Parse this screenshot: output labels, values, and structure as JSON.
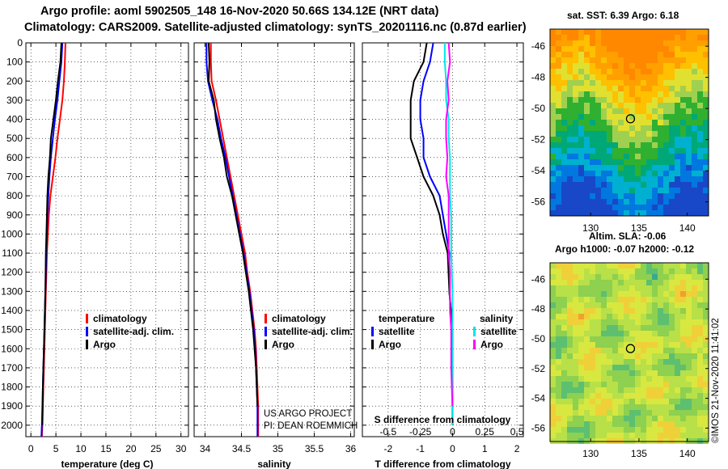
{
  "header": {
    "title_line1": "Argo profile: aoml 5902505_148 16-Nov-2020 50.66S 134.12E (NRT data)",
    "title_line2": "Climatology: CARS2009. Satellite-adjusted climatology: synTS_20201116.nc (0.87d earlier)"
  },
  "credit": {
    "line1": "US ARGO PROJECT",
    "line2": "PI: DEAN ROEMMICH"
  },
  "stamp": "©IMOS 21-Nov-2020 11:41:02",
  "colors": {
    "climatology": "#ff0000",
    "satellite": "#0000ff",
    "argo": "#000000",
    "s_satellite": "#00e5ee",
    "s_argo": "#ff00ff"
  },
  "legend_left": {
    "climatology": "climatology",
    "satellite": "satellite-adj. clim.",
    "argo": "Argo"
  },
  "legend_diff": {
    "temp_head": "temperature",
    "sal_head": "salinity",
    "satellite": "satellite",
    "argo": "Argo",
    "s_satellite": "satellite",
    "s_argo": "Argo"
  },
  "sst_map": {
    "title": "sat. SST: 6.39 Argo: 6.18",
    "xticks": [
      "130",
      "135",
      "140"
    ],
    "yticks": [
      "-46",
      "-48",
      "-50",
      "-52",
      "-54",
      "-56"
    ]
  },
  "sla_map": {
    "title_line1": "Altim. SLA: -0.06",
    "title_line2": "Argo h1000: -0.07 h2000: -0.12",
    "xticks": [
      "130",
      "135",
      "140"
    ],
    "yticks": [
      "-46",
      "-48",
      "-50",
      "-52",
      "-54",
      "-56"
    ]
  },
  "chart_data": [
    {
      "type": "line",
      "id": "temperature",
      "xlabel": "temperature (deg C)",
      "ylabel": "",
      "xlim": [
        -1,
        31.5
      ],
      "ylim": [
        2060,
        0
      ],
      "xticks": [
        "0",
        "5",
        "10",
        "15",
        "20",
        "25",
        "30"
      ],
      "yticks": [
        "0",
        "100",
        "200",
        "300",
        "400",
        "500",
        "600",
        "700",
        "800",
        "900",
        "1000",
        "1100",
        "1200",
        "1300",
        "1400",
        "1500",
        "1600",
        "1700",
        "1800",
        "1900",
        "2000"
      ],
      "series": [
        {
          "name": "climatology",
          "color": "#ff0000",
          "points": [
            [
              6.9,
              0
            ],
            [
              6.8,
              100
            ],
            [
              6.6,
              200
            ],
            [
              6.3,
              300
            ],
            [
              5.8,
              400
            ],
            [
              5.3,
              500
            ],
            [
              4.9,
              600
            ],
            [
              4.4,
              700
            ],
            [
              3.9,
              800
            ],
            [
              3.6,
              900
            ],
            [
              3.4,
              1000
            ],
            [
              3.2,
              1100
            ],
            [
              3.1,
              1200
            ],
            [
              3.0,
              1300
            ],
            [
              2.9,
              1400
            ],
            [
              2.8,
              1500
            ],
            [
              2.7,
              1600
            ],
            [
              2.6,
              1700
            ],
            [
              2.5,
              1800
            ],
            [
              2.4,
              1900
            ],
            [
              2.3,
              2000
            ],
            [
              2.2,
              2060
            ]
          ]
        },
        {
          "name": "satellite-adj. clim.",
          "color": "#0000ff",
          "points": [
            [
              6.3,
              0
            ],
            [
              6.1,
              100
            ],
            [
              5.7,
              200
            ],
            [
              5.3,
              300
            ],
            [
              4.8,
              400
            ],
            [
              4.4,
              500
            ],
            [
              4.0,
              600
            ],
            [
              3.7,
              700
            ],
            [
              3.5,
              800
            ],
            [
              3.3,
              900
            ],
            [
              3.2,
              1000
            ],
            [
              3.1,
              1100
            ],
            [
              3.0,
              1200
            ],
            [
              2.9,
              1300
            ],
            [
              2.8,
              1400
            ],
            [
              2.7,
              1500
            ],
            [
              2.6,
              1600
            ],
            [
              2.5,
              1700
            ],
            [
              2.4,
              1800
            ],
            [
              2.3,
              1900
            ],
            [
              2.2,
              2000
            ],
            [
              2.1,
              2060
            ]
          ]
        },
        {
          "name": "Argo",
          "color": "#000000",
          "points": [
            [
              6.1,
              0
            ],
            [
              5.9,
              100
            ],
            [
              5.4,
              200
            ],
            [
              5.0,
              300
            ],
            [
              4.5,
              400
            ],
            [
              4.0,
              500
            ],
            [
              3.8,
              600
            ],
            [
              3.5,
              700
            ],
            [
              3.3,
              800
            ],
            [
              3.2,
              900
            ],
            [
              3.1,
              1000
            ],
            [
              3.0,
              1100
            ],
            [
              2.95,
              1200
            ],
            [
              2.9,
              1300
            ],
            [
              2.8,
              1400
            ],
            [
              2.7,
              1500
            ],
            [
              2.6,
              1600
            ],
            [
              2.5,
              1700
            ],
            [
              2.4,
              1800
            ],
            [
              2.35,
              1900
            ],
            [
              2.3,
              2000
            ]
          ]
        }
      ]
    },
    {
      "type": "line",
      "id": "salinity",
      "xlabel": "salinity",
      "ylabel": "",
      "xlim": [
        33.85,
        36.05
      ],
      "ylim": [
        2060,
        0
      ],
      "xticks": [
        "34",
        "34.5",
        "35",
        "35.5",
        "36"
      ],
      "series": [
        {
          "name": "climatology",
          "color": "#ff0000",
          "points": [
            [
              34.08,
              0
            ],
            [
              34.08,
              100
            ],
            [
              34.09,
              200
            ],
            [
              34.15,
              300
            ],
            [
              34.2,
              400
            ],
            [
              34.25,
              500
            ],
            [
              34.3,
              600
            ],
            [
              34.35,
              700
            ],
            [
              34.4,
              800
            ],
            [
              34.45,
              900
            ],
            [
              34.5,
              1000
            ],
            [
              34.55,
              1100
            ],
            [
              34.58,
              1200
            ],
            [
              34.62,
              1300
            ],
            [
              34.65,
              1400
            ],
            [
              34.68,
              1500
            ],
            [
              34.7,
              1600
            ],
            [
              34.71,
              1700
            ],
            [
              34.72,
              1800
            ],
            [
              34.73,
              1900
            ],
            [
              34.73,
              2000
            ],
            [
              34.73,
              2060
            ]
          ]
        },
        {
          "name": "satellite-adj. clim.",
          "color": "#0000ff",
          "points": [
            [
              34.02,
              0
            ],
            [
              34.02,
              100
            ],
            [
              34.04,
              200
            ],
            [
              34.1,
              300
            ],
            [
              34.17,
              400
            ],
            [
              34.22,
              500
            ],
            [
              34.28,
              600
            ],
            [
              34.33,
              700
            ],
            [
              34.38,
              800
            ],
            [
              34.43,
              900
            ],
            [
              34.48,
              1000
            ],
            [
              34.53,
              1100
            ],
            [
              34.57,
              1200
            ],
            [
              34.61,
              1300
            ],
            [
              34.64,
              1400
            ],
            [
              34.67,
              1500
            ],
            [
              34.69,
              1600
            ],
            [
              34.7,
              1700
            ],
            [
              34.71,
              1800
            ],
            [
              34.72,
              1900
            ],
            [
              34.72,
              2000
            ],
            [
              34.72,
              2060
            ]
          ]
        },
        {
          "name": "Argo",
          "color": "#000000",
          "points": [
            [
              34.05,
              0
            ],
            [
              34.06,
              100
            ],
            [
              34.05,
              200
            ],
            [
              34.12,
              300
            ],
            [
              34.15,
              400
            ],
            [
              34.2,
              500
            ],
            [
              34.26,
              600
            ],
            [
              34.3,
              700
            ],
            [
              34.37,
              800
            ],
            [
              34.42,
              900
            ],
            [
              34.47,
              1000
            ],
            [
              34.52,
              1100
            ],
            [
              34.56,
              1200
            ],
            [
              34.6,
              1300
            ],
            [
              34.63,
              1400
            ],
            [
              34.66,
              1500
            ],
            [
              34.68,
              1600
            ],
            [
              34.7,
              1700
            ],
            [
              34.71,
              1800
            ],
            [
              34.72,
              1900
            ]
          ]
        }
      ]
    },
    {
      "type": "line",
      "id": "difference",
      "xlabel": "T difference from climatology",
      "xlabel2": "S difference from climatology",
      "ylabel": "",
      "xlim": [
        -2.8,
        2.2
      ],
      "ylim": [
        2060,
        0
      ],
      "xticks": [
        "-2",
        "-1",
        "0",
        "1",
        "2"
      ],
      "xticks2": [
        "-0.5",
        "-0.25",
        "0",
        "0.25",
        "0.5"
      ],
      "series": [
        {
          "name": "temperature satellite",
          "color": "#0000ff",
          "points": [
            [
              -0.6,
              0
            ],
            [
              -0.7,
              100
            ],
            [
              -0.9,
              200
            ],
            [
              -1.0,
              300
            ],
            [
              -1.0,
              400
            ],
            [
              -0.9,
              500
            ],
            [
              -0.9,
              600
            ],
            [
              -0.7,
              700
            ],
            [
              -0.4,
              800
            ],
            [
              -0.3,
              900
            ],
            [
              -0.2,
              1000
            ],
            [
              -0.1,
              1100
            ],
            [
              -0.1,
              1300
            ],
            [
              0,
              1500
            ],
            [
              0,
              1700
            ],
            [
              0,
              1900
            ],
            [
              0,
              2000
            ]
          ]
        },
        {
          "name": "temperature Argo",
          "color": "#000000",
          "points": [
            [
              -0.8,
              0
            ],
            [
              -0.9,
              100
            ],
            [
              -1.2,
              200
            ],
            [
              -1.3,
              300
            ],
            [
              -1.3,
              400
            ],
            [
              -1.3,
              500
            ],
            [
              -1.1,
              600
            ],
            [
              -0.9,
              700
            ],
            [
              -0.6,
              800
            ],
            [
              -0.4,
              900
            ],
            [
              -0.3,
              1000
            ],
            [
              -0.15,
              1100
            ],
            [
              -0.1,
              1300
            ],
            [
              0,
              1500
            ],
            [
              0,
              1700
            ],
            [
              0,
              1900
            ],
            [
              0,
              2000
            ]
          ]
        },
        {
          "name": "salinity satellite",
          "color": "#00e5ee",
          "x_scale": "salinity",
          "points": [
            [
              -0.06,
              0
            ],
            [
              -0.06,
              100
            ],
            [
              -0.05,
              200
            ],
            [
              -0.05,
              300
            ],
            [
              -0.03,
              400
            ],
            [
              -0.03,
              500
            ],
            [
              -0.02,
              600
            ],
            [
              -0.02,
              700
            ],
            [
              -0.02,
              800
            ],
            [
              -0.01,
              900
            ],
            [
              -0.01,
              1000
            ],
            [
              -0.01,
              1100
            ],
            [
              0,
              1300
            ],
            [
              0,
              1500
            ],
            [
              0,
              1700
            ],
            [
              0,
              1900
            ],
            [
              0,
              2000
            ]
          ]
        },
        {
          "name": "salinity Argo",
          "color": "#ff00ff",
          "x_scale": "salinity",
          "points": [
            [
              -0.03,
              0
            ],
            [
              -0.02,
              100
            ],
            [
              -0.04,
              200
            ],
            [
              -0.03,
              300
            ],
            [
              -0.05,
              400
            ],
            [
              -0.05,
              500
            ],
            [
              -0.04,
              600
            ],
            [
              -0.05,
              700
            ],
            [
              -0.03,
              800
            ],
            [
              -0.03,
              900
            ],
            [
              -0.03,
              1000
            ],
            [
              -0.03,
              1100
            ],
            [
              -0.02,
              1200
            ],
            [
              -0.02,
              1300
            ],
            [
              -0.02,
              1400
            ],
            [
              -0.01,
              1500
            ],
            [
              -0.01,
              1700
            ],
            [
              0,
              1900
            ]
          ]
        }
      ]
    }
  ]
}
